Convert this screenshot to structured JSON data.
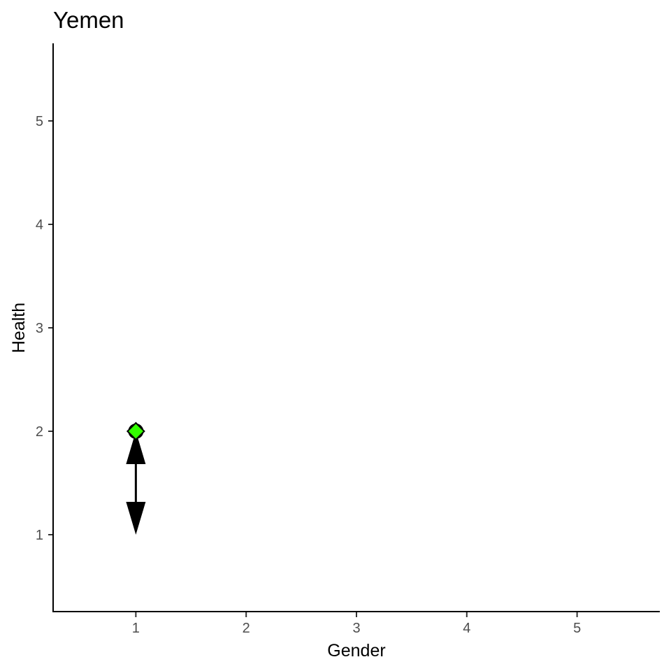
{
  "chart_data": {
    "type": "scatter",
    "title": "Yemen",
    "xlabel": "Gender",
    "ylabel": "Health",
    "xlim": [
      0.25,
      5.75
    ],
    "ylim": [
      0.25,
      5.75
    ],
    "x_ticks": [
      "1",
      "2",
      "3",
      "4",
      "5"
    ],
    "y_ticks": [
      "1",
      "2",
      "3",
      "4",
      "5"
    ],
    "grid": false,
    "points": [
      {
        "x": 1,
        "y": 2,
        "color": "#33ff00"
      }
    ],
    "arrows": [
      {
        "x": 1,
        "y_start": 2,
        "y_end": 1,
        "double_headed": true,
        "color": "#000000"
      }
    ]
  }
}
